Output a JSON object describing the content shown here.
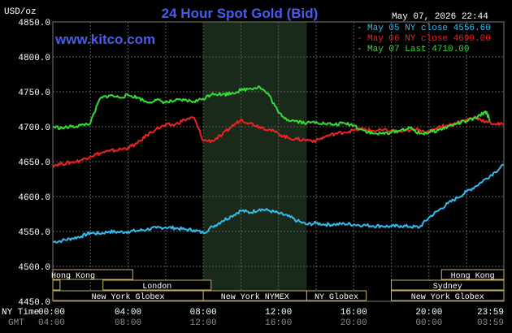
{
  "header": {
    "title": "24 Hour Spot Gold (Bid)",
    "timestamp": "May 07, 2026 22:44",
    "site": "www.kitco.com",
    "unit_label": "USD/oz"
  },
  "legend": [
    {
      "text": "May 05 NY close 4556.60",
      "color": "#33bbee"
    },
    {
      "text": "May 06 NY close 4690.00",
      "color": "#ee2222"
    },
    {
      "text": "May 07 Last 4710.00",
      "color": "#33dd33"
    }
  ],
  "axis": {
    "y_ticks": [
      "4850.0",
      "4800.0",
      "4750.0",
      "4700.0",
      "4650.0",
      "4600.0",
      "4550.0",
      "4500.0",
      "4450.0"
    ],
    "ny_label": "NY Time",
    "gmt_label": "GMT",
    "ny_times": [
      "00:00",
      "04:00",
      "08:00",
      "12:00",
      "16:00",
      "20:00",
      "23:59"
    ],
    "gmt_times": [
      "04:00",
      "08:00",
      "12:00",
      "16:00",
      "20:00",
      "00:00",
      "03:59"
    ]
  },
  "sessions": [
    {
      "label": "Hong Kong"
    },
    {
      "label": "London"
    },
    {
      "label": "New York Globex"
    },
    {
      "label": "New York NYMEX"
    },
    {
      "label": "NY Globex"
    },
    {
      "label": "Hong Kong"
    },
    {
      "label": "Sydney"
    },
    {
      "label": "New York Globex"
    }
  ],
  "chart_data": {
    "type": "line",
    "title": "24 Hour Spot Gold (Bid)",
    "ylabel": "USD/oz",
    "ylim": [
      4450,
      4850
    ],
    "xlim": [
      "00:00",
      "23:59"
    ],
    "grid": true,
    "legend_position": "top-right",
    "series": [
      {
        "name": "May 05 NY close 4556.60",
        "color": "#33bbee",
        "x": [
          "00:00",
          "00:30",
          "01:00",
          "01:30",
          "02:00",
          "02:30",
          "03:00",
          "03:30",
          "04:00",
          "04:30",
          "05:00",
          "05:30",
          "06:00",
          "06:30",
          "07:00",
          "07:30",
          "08:00",
          "08:30",
          "09:00",
          "09:30",
          "10:00",
          "10:30",
          "11:00",
          "11:30",
          "12:00",
          "12:30",
          "13:00",
          "13:30",
          "14:00",
          "14:30",
          "15:00",
          "15:30",
          "16:00",
          "16:30",
          "17:00",
          "17:30",
          "18:00",
          "18:30",
          "19:00",
          "19:30",
          "20:00",
          "20:30",
          "21:00",
          "21:30",
          "22:00",
          "22:30",
          "23:00",
          "23:30",
          "23:59"
        ],
        "values": [
          4535,
          4537,
          4540,
          4543,
          4548,
          4547,
          4550,
          4549,
          4550,
          4551,
          4553,
          4555,
          4556,
          4555,
          4553,
          4552,
          4548,
          4557,
          4565,
          4572,
          4580,
          4577,
          4582,
          4580,
          4576,
          4572,
          4565,
          4560,
          4562,
          4560,
          4560,
          4561,
          4560,
          4559,
          4558,
          4558,
          4557,
          4558,
          4557,
          4556,
          4570,
          4580,
          4590,
          4598,
          4607,
          4615,
          4625,
          4635,
          4645
        ]
      },
      {
        "name": "May 06 NY close 4690.00",
        "color": "#ee2222",
        "x": [
          "00:00",
          "00:30",
          "01:00",
          "01:30",
          "02:00",
          "02:30",
          "03:00",
          "03:30",
          "04:00",
          "04:30",
          "05:00",
          "05:30",
          "06:00",
          "06:30",
          "07:00",
          "07:30",
          "08:00",
          "08:30",
          "09:00",
          "09:30",
          "10:00",
          "10:30",
          "11:00",
          "11:30",
          "12:00",
          "12:30",
          "13:00",
          "13:30",
          "14:00",
          "14:30",
          "15:00",
          "15:30",
          "16:00",
          "16:30",
          "17:00",
          "17:30",
          "18:00",
          "18:30",
          "19:00",
          "19:30",
          "20:00",
          "20:30",
          "21:00",
          "21:30",
          "22:00",
          "22:30",
          "23:00",
          "23:30",
          "23:59"
        ],
        "values": [
          4645,
          4647,
          4649,
          4652,
          4658,
          4662,
          4665,
          4667,
          4670,
          4676,
          4688,
          4697,
          4702,
          4703,
          4710,
          4713,
          4680,
          4680,
          4688,
          4700,
          4710,
          4705,
          4700,
          4696,
          4690,
          4684,
          4682,
          4681,
          4680,
          4686,
          4690,
          4692,
          4695,
          4697,
          4694,
          4695,
          4694,
          4693,
          4695,
          4696,
          4692,
          4700,
          4702,
          4705,
          4710,
          4714,
          4707,
          4704,
          4703
        ]
      },
      {
        "name": "May 07 Last 4710.00",
        "color": "#33dd33",
        "x": [
          "00:00",
          "00:30",
          "01:00",
          "01:30",
          "02:00",
          "02:30",
          "03:00",
          "03:30",
          "04:00",
          "04:30",
          "05:00",
          "05:30",
          "06:00",
          "06:30",
          "07:00",
          "07:30",
          "08:00",
          "08:30",
          "09:00",
          "09:30",
          "10:00",
          "10:30",
          "11:00",
          "11:30",
          "12:00",
          "12:30",
          "13:00",
          "13:30",
          "14:00",
          "14:30",
          "15:00",
          "15:30",
          "16:00",
          "16:30",
          "17:00",
          "17:30",
          "18:00",
          "18:30",
          "19:00",
          "19:30",
          "20:00",
          "20:30",
          "21:00",
          "21:30",
          "22:00",
          "22:30",
          "23:00",
          "23:15"
        ],
        "values": [
          4700,
          4698,
          4700,
          4702,
          4705,
          4740,
          4745,
          4742,
          4745,
          4742,
          4735,
          4738,
          4735,
          4737,
          4738,
          4736,
          4740,
          4748,
          4746,
          4748,
          4752,
          4755,
          4757,
          4745,
          4720,
          4710,
          4708,
          4705,
          4707,
          4704,
          4703,
          4705,
          4702,
          4695,
          4690,
          4690,
          4692,
          4695,
          4698,
          4690,
          4692,
          4695,
          4700,
          4705,
          4708,
          4712,
          4722,
          4710
        ]
      }
    ]
  }
}
